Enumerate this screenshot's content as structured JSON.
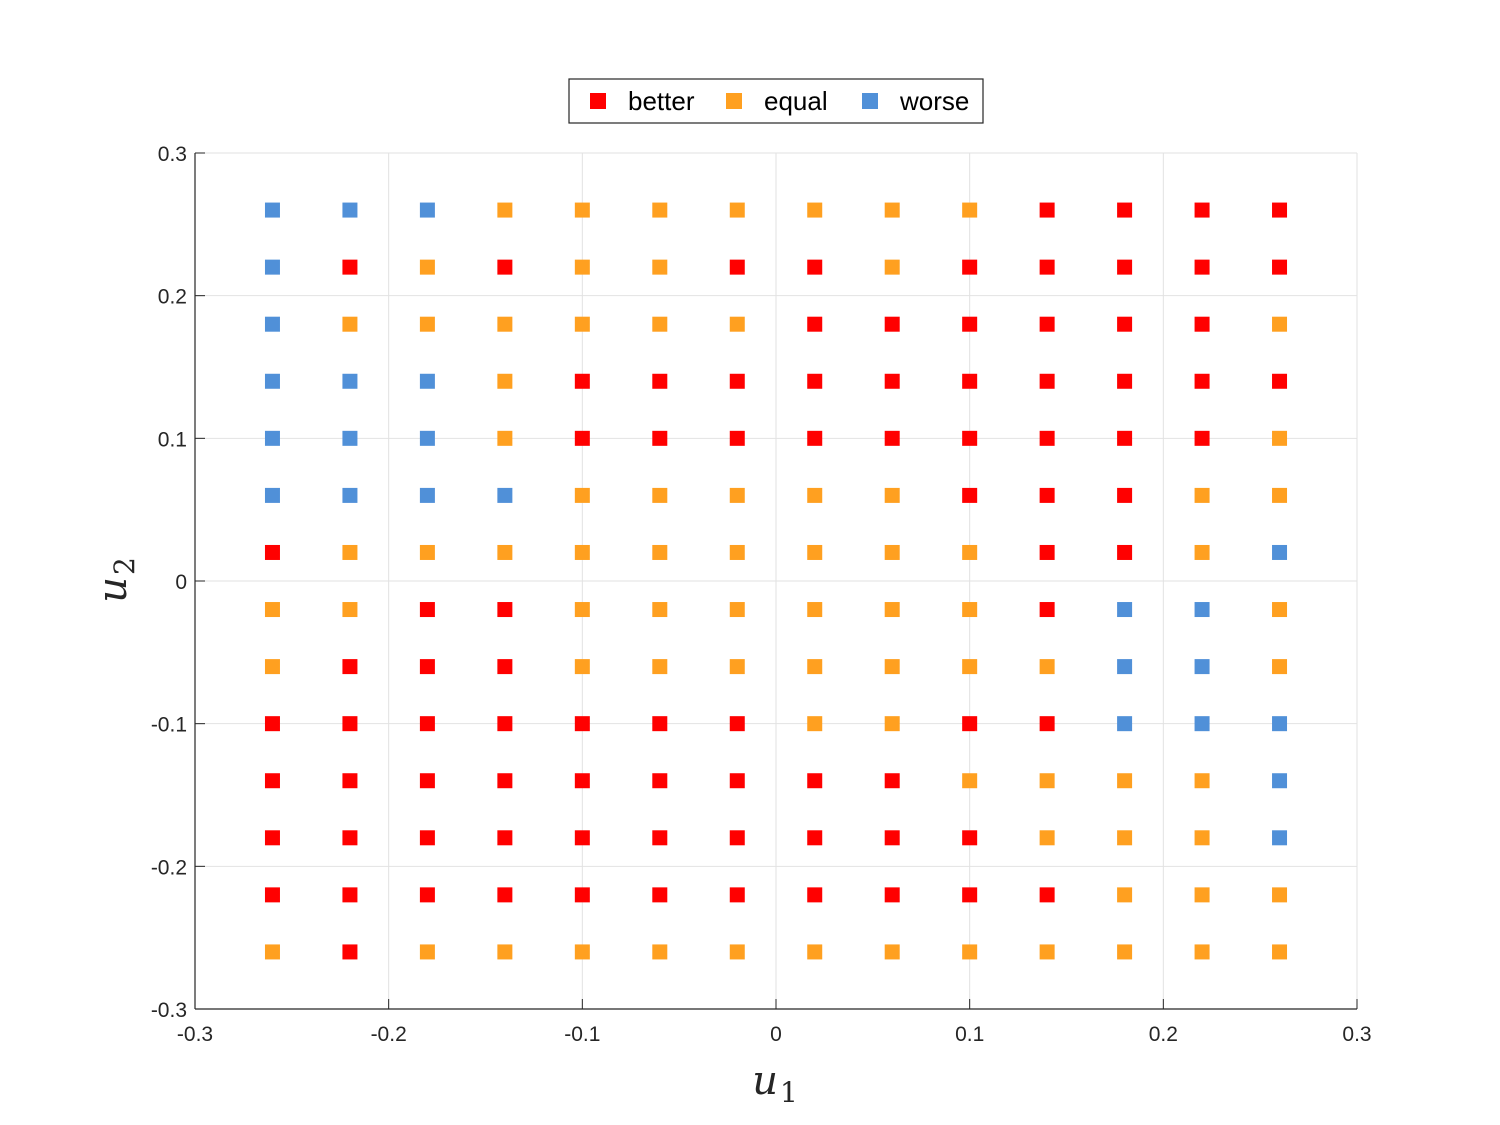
{
  "chart_data": {
    "type": "scatter",
    "title": "",
    "xlabel": {
      "base": "u",
      "sub": "1"
    },
    "ylabel": {
      "base": "u",
      "sub": "2"
    },
    "xlim": [
      -0.3,
      0.3
    ],
    "ylim": [
      -0.3,
      0.3
    ],
    "xticks": [
      "-0.3",
      "-0.2",
      "-0.1",
      "0",
      "0.1",
      "0.2",
      "0.3"
    ],
    "yticks": [
      "0.3",
      "0.2",
      "0.1",
      "0",
      "-0.1",
      "-0.2",
      "-0.3"
    ],
    "grid": true,
    "legend": {
      "placement": "top-center"
    },
    "series": [
      {
        "name": "better",
        "color": "#ff0000"
      },
      {
        "name": "equal",
        "color": "#ffa020"
      },
      {
        "name": "worse",
        "color": "#5090d8"
      }
    ],
    "x": [
      -0.26,
      -0.22,
      -0.18,
      -0.14,
      -0.1,
      -0.06,
      -0.02,
      0.02,
      0.06,
      0.1,
      0.14,
      0.18,
      0.22,
      0.26
    ],
    "y": [
      0.26,
      0.22,
      0.18,
      0.14,
      0.1,
      0.06,
      0.02,
      -0.02,
      -0.06,
      -0.1,
      -0.14,
      -0.18,
      -0.22,
      -0.26
    ],
    "grid_classes": [
      "WWWEEEEEEERRRR",
      "WREREERRERRRRR",
      "WEEEEEERRRRRRE",
      "WWWERRRRRRRRRR",
      "WWWERRRRRRRRRE",
      "WWWWEEEEERRREE",
      "REEEEEEEEERREW",
      "EERREEEEEERWWE",
      "ERRREEEEEEEWWE",
      "RRRRRRREERRWWW",
      "RRRRRRRRREEEEW",
      "RRRRRRRRRREEEW",
      "RRRRRRRRRRREEE",
      "EREEEEEEEEEEEE"
    ],
    "class_codes": {
      "R": "better",
      "E": "equal",
      "W": "worse"
    }
  }
}
